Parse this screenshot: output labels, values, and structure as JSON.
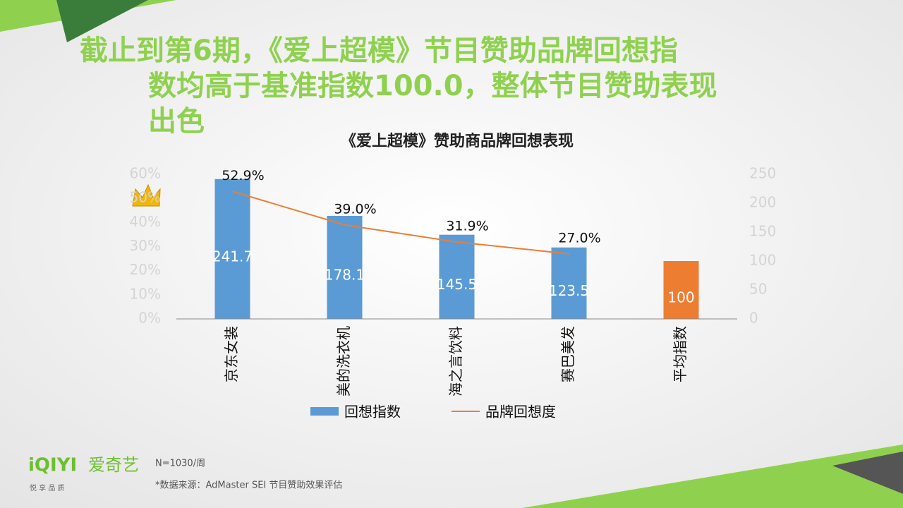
{
  "headline": [
    "截止到第6期，《爱上超模》节目赞助品牌回想指",
    "数均高于基准指数100.0，整体节目赞助表现",
    "出色"
  ],
  "chart_data": {
    "type": "bar",
    "title": "《爱上超模》赞助商品牌回想表现",
    "categories": [
      "京东女装",
      "美的洗衣机",
      "海之言饮料",
      "赛巴美发",
      "平均指数"
    ],
    "series": [
      {
        "name": "回想指数",
        "type": "bar",
        "axis": "y2",
        "color": "#5b9bd5",
        "colors": [
          "#5b9bd5",
          "#5b9bd5",
          "#5b9bd5",
          "#5b9bd5",
          "#ed7d31"
        ],
        "values": [
          241.7,
          178.1,
          145.5,
          123.5,
          100
        ]
      },
      {
        "name": "品牌回想度",
        "type": "line",
        "axis": "y",
        "color": "#ed7d31",
        "values": [
          52.9,
          39.0,
          31.9,
          27.0,
          null
        ],
        "value_labels": [
          "52.9%",
          "39.0%",
          "31.9%",
          "27.0%",
          null
        ]
      }
    ],
    "ylim": [
      0,
      60
    ],
    "yticks": [
      {
        "value": 0,
        "label": "0%"
      },
      {
        "value": 10,
        "label": "10%"
      },
      {
        "value": 20,
        "label": "20%"
      },
      {
        "value": 30,
        "label": "30%"
      },
      {
        "value": 40,
        "label": "40%"
      },
      {
        "value": 50,
        "label": "50%"
      },
      {
        "value": 60,
        "label": "60%"
      }
    ],
    "y2lim": [
      0,
      250
    ],
    "y2ticks": [
      0,
      50,
      100,
      150,
      200,
      250
    ],
    "legend": "bottom"
  },
  "logo": {
    "brand": "iQIYI",
    "name": "爱奇艺",
    "slogan": "悦 享 品 质"
  },
  "footer": {
    "sample": "N=1030/周",
    "source": "*数据来源：AdMaster SEI 节目赞助效果评估"
  }
}
